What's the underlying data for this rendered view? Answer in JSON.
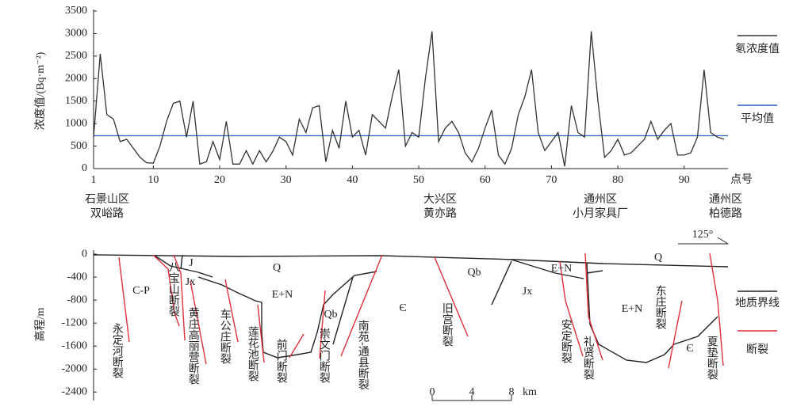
{
  "chart_data": [
    {
      "type": "line",
      "y_label": "浓度值/(Bq·m⁻²)",
      "x_label": "点号",
      "x": [
        1,
        2,
        3,
        4,
        5,
        6,
        7,
        8,
        9,
        10,
        11,
        12,
        13,
        14,
        15,
        16,
        17,
        18,
        19,
        20,
        21,
        22,
        23,
        24,
        25,
        26,
        27,
        28,
        29,
        30,
        31,
        32,
        33,
        34,
        35,
        36,
        37,
        38,
        39,
        40,
        41,
        42,
        43,
        44,
        45,
        46,
        47,
        48,
        49,
        50,
        51,
        52,
        53,
        54,
        55,
        56,
        57,
        58,
        59,
        60,
        61,
        62,
        63,
        64,
        65,
        66,
        67,
        68,
        69,
        70,
        71,
        72,
        73,
        74,
        75,
        76,
        77,
        78,
        79,
        80,
        81,
        82,
        83,
        84,
        85,
        86,
        87,
        88,
        89,
        90,
        91,
        92,
        93,
        94,
        95,
        96
      ],
      "series": [
        {
          "name": "氡浓度值",
          "color": "#333333",
          "values": [
            700,
            2550,
            1200,
            1100,
            600,
            650,
            450,
            250,
            130,
            120,
            500,
            1050,
            1450,
            1500,
            700,
            1500,
            100,
            150,
            600,
            200,
            1050,
            100,
            100,
            400,
            100,
            400,
            150,
            380,
            700,
            600,
            300,
            1100,
            800,
            1350,
            1400,
            150,
            850,
            450,
            1500,
            700,
            850,
            300,
            1200,
            1050,
            900,
            1600,
            2200,
            500,
            800,
            700,
            2000,
            3050,
            600,
            900,
            1050,
            800,
            350,
            150,
            450,
            900,
            1300,
            300,
            100,
            450,
            1200,
            1600,
            2200,
            800,
            400,
            600,
            800,
            50,
            1400,
            800,
            700,
            3050,
            1500,
            250,
            400,
            650,
            300,
            350,
            500,
            650,
            1050,
            650,
            850,
            1000,
            300,
            300,
            350,
            700,
            2200,
            800,
            700,
            650
          ]
        }
      ],
      "mean": {
        "name": "平均值",
        "color": "#2a5cc8",
        "value": 730
      },
      "xlim": [
        1,
        96.6
      ],
      "ylim": [
        0,
        3500
      ],
      "xticks": [
        1,
        10,
        20,
        30,
        40,
        50,
        60,
        70,
        80,
        90
      ],
      "yticks": [
        0,
        500,
        1000,
        1500,
        2000,
        2500,
        3000,
        3500
      ],
      "locations": [
        {
          "district": "石景山区",
          "site": "双峪路"
        },
        {
          "district": "大兴区",
          "site": "黄亦路"
        },
        {
          "district": "通州区",
          "site": "小月家具厂"
        },
        {
          "district": "通州区",
          "site": "柏德路"
        }
      ]
    },
    {
      "type": "section",
      "y_label": "高程/m",
      "ylim": [
        -2520,
        70
      ],
      "yticks": [
        0,
        -400,
        -800,
        -1200,
        -1600,
        -2000,
        -2400
      ],
      "units": [
        "C-P",
        "J",
        "Jx",
        "Q",
        "E+N",
        "Qb",
        "Є",
        "Qb",
        "Jx",
        "E+N",
        "Q",
        "E+N",
        "Є"
      ],
      "faults": [
        "永定河断裂",
        "八宝山断裂",
        "黄庄高丽营断裂",
        "车公庄断裂",
        "莲花池断裂",
        "前门断裂",
        "崇文门断裂",
        "南苑-通县断裂",
        "旧宫断裂",
        "安定断裂",
        "礼贤断裂",
        "东庄断裂",
        "夏垫断裂"
      ],
      "legend": [
        {
          "name": "地质界线",
          "color": "#222222"
        },
        {
          "name": "断裂",
          "color": "#e0303c"
        }
      ],
      "scale": {
        "ticks": [
          0,
          4,
          8
        ],
        "unit": "km"
      },
      "orientation": "125°"
    }
  ]
}
